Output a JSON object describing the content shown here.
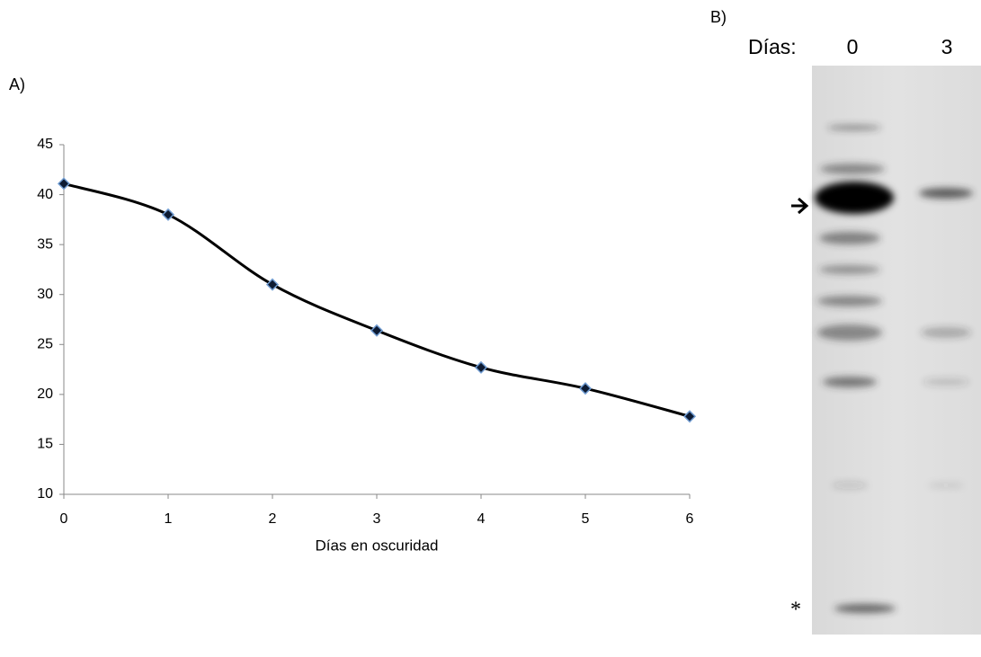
{
  "chart_data": {
    "type": "line",
    "xlabel": "Días en oscuridad",
    "x": [
      0,
      1,
      2,
      3,
      4,
      5,
      6
    ],
    "values": [
      41.1,
      38,
      31,
      26.4,
      22.7,
      20.6,
      17.8
    ],
    "color": "#000000",
    "marker_color": "#0d1b33",
    "marker_edge": "#6f9bd1",
    "xlim": [
      0,
      6
    ],
    "xticks": [
      0,
      1,
      2,
      3,
      4,
      5,
      6
    ],
    "ylim": [
      10,
      45
    ],
    "yticks": [
      10,
      15,
      20,
      25,
      30,
      35,
      40,
      45
    ],
    "grid": false,
    "smooth": true
  },
  "panels": {
    "a_label": "A)",
    "b_label": "B)"
  },
  "gel": {
    "lanes_label": "Días:",
    "lanes": [
      "0",
      "3"
    ],
    "asterisk": "*"
  }
}
